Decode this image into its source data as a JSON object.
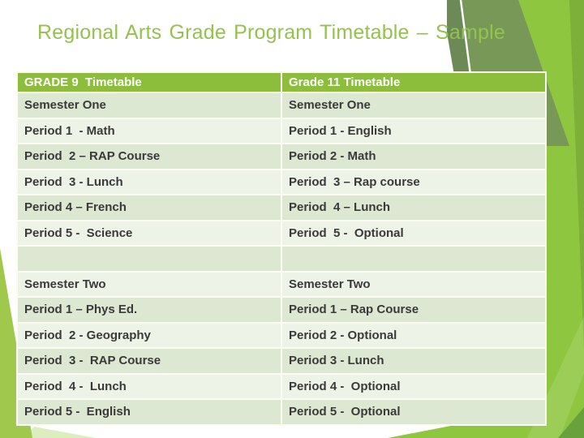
{
  "slide": {
    "title": "Regional Arts Grade Program Timetable – Sample"
  },
  "table": {
    "columns": [
      {
        "header": "GRADE 9  Timetable"
      },
      {
        "header": "Grade 11 Timetable"
      }
    ],
    "rows": [
      {
        "left": "Semester One",
        "right": "Semester One"
      },
      {
        "left": "Period 1  - Math",
        "right": "Period 1 - English"
      },
      {
        "left": "Period  2 – RAP Course",
        "right": "Period 2 - Math"
      },
      {
        "left": "Period  3 - Lunch",
        "right": "Period  3 – Rap course"
      },
      {
        "left": "Period 4 – French",
        "right": "Period  4 – Lunch"
      },
      {
        "left": "Period 5 -  Science",
        "right": "Period  5 -  Optional"
      },
      {
        "left": "",
        "right": ""
      },
      {
        "left": "Semester Two",
        "right": "Semester Two"
      },
      {
        "left": "Period 1 – Phys Ed.",
        "right": "Period 1 – Rap Course"
      },
      {
        "left": "Period  2 - Geography",
        "right": "Period 2 - Optional"
      },
      {
        "left": "Period  3 -  RAP Course",
        "right": "Period 3 - Lunch"
      },
      {
        "left": "Period  4 -  Lunch",
        "right": "Period 4 -  Optional"
      },
      {
        "left": "Period 5 -  English",
        "right": "Period 5 -  Optional"
      }
    ]
  },
  "colors": {
    "title_green": "#95c24e",
    "header_green": "#8cbe3c",
    "band_dark": "#dce8d2",
    "band_light": "#edf3e7",
    "decor_bright_green": "#8ec63f",
    "decor_olive_green": "#789858",
    "decor_wedge_green": "#9fc84d",
    "decor_dark_corner": "#69a13c",
    "table_gap_cream": "#fbfcf2",
    "cell_text": "#3a3a3a"
  }
}
